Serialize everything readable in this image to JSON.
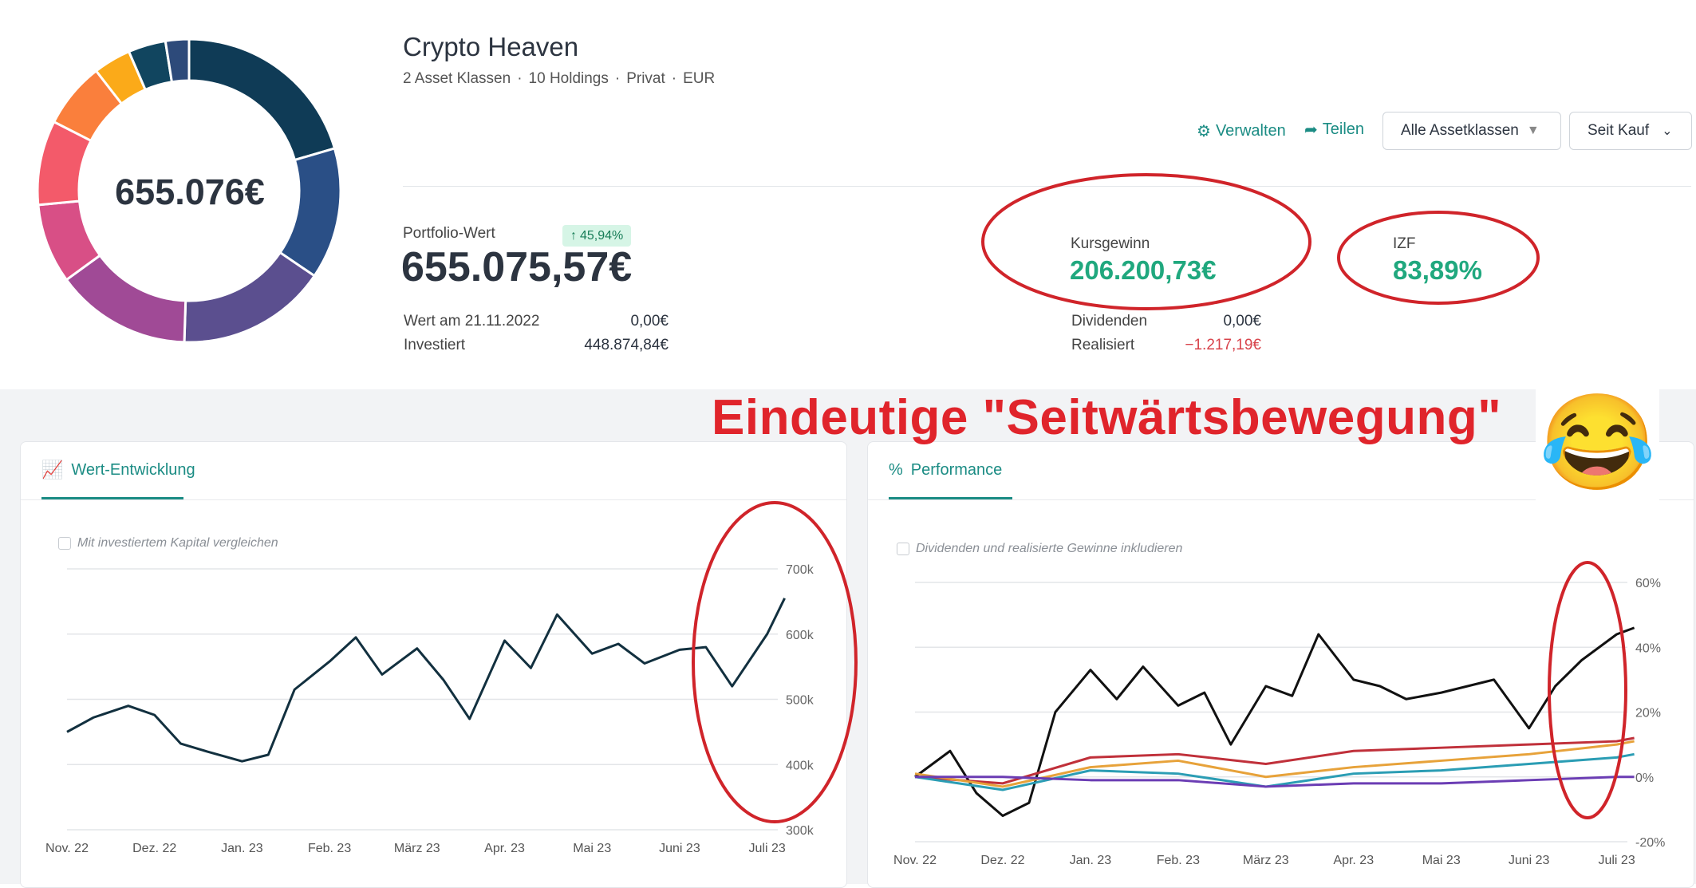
{
  "portfolio": {
    "title": "Crypto Heaven",
    "subtitle": [
      "2 Asset Klassen",
      "10 Holdings",
      "Privat",
      "EUR"
    ],
    "donut_value": "655.076€",
    "donut_segments": [
      {
        "color": "#0f3b56",
        "fraction": 0.205
      },
      {
        "color": "#2a4f86",
        "fraction": 0.14
      },
      {
        "color": "#5b4f8f",
        "fraction": 0.16
      },
      {
        "color": "#a04a96",
        "fraction": 0.145
      },
      {
        "color": "#d84f86",
        "fraction": 0.085
      },
      {
        "color": "#f35a6a",
        "fraction": 0.09
      },
      {
        "color": "#fa7f3c",
        "fraction": 0.07
      },
      {
        "color": "#fbaa19",
        "fraction": 0.04
      },
      {
        "color": "#11455f",
        "fraction": 0.04
      },
      {
        "color": "#2d4a7a",
        "fraction": 0.025
      }
    ]
  },
  "toolbar": {
    "manage": "Verwalten",
    "share": "Teilen",
    "asset_filter": "Alle Assetklassen",
    "period": "Seit Kauf"
  },
  "stats": {
    "portfolio_label": "Portfolio-Wert",
    "portfolio_value": "655.075,57€",
    "badge": "45,94%",
    "start_label": "Wert am 21.11.2022",
    "start_value": "0,00€",
    "invested_label": "Investiert",
    "invested_value": "448.874,84€",
    "gain_label": "Kursgewinn",
    "gain_value": "206.200,73€",
    "irr_label": "IZF",
    "irr_value": "83,89%",
    "dividends_label": "Dividenden",
    "dividends_value": "0,00€",
    "realized_label": "Realisiert",
    "realized_value": "−1.217,19€"
  },
  "annotation": {
    "headline": "Eindeutige \"Seitwärtsbewegung\"",
    "emoji": "😂",
    "circle_color": "#d0242a"
  },
  "cards": {
    "value": {
      "tab": "Wert-Entwicklung",
      "checkbox": "Mit investiertem Kapital vergleichen"
    },
    "performance": {
      "tab": "Performance",
      "checkbox": "Dividenden und realisierte Gewinne inkludieren"
    }
  },
  "colors": {
    "accent": "#1b8c84",
    "positive": "#20a87e",
    "negative": "#d8434b"
  },
  "chart_data": [
    {
      "type": "line",
      "title": "Wert-Entwicklung",
      "x_ticks": [
        "Nov. 22",
        "Dez. 22",
        "Jan. 23",
        "Feb. 23",
        "März 23",
        "Apr. 23",
        "Mai 23",
        "Juni 23",
        "Juli 23"
      ],
      "y_ticks": [
        "300k",
        "400k",
        "500k",
        "600k",
        "700k"
      ],
      "ylim": [
        300000,
        700000
      ],
      "grid": true,
      "series": [
        {
          "color": "#12303f",
          "x": [
            0,
            0.3,
            0.7,
            1,
            1.3,
            1.6,
            2,
            2.3,
            2.6,
            3,
            3.3,
            3.6,
            4,
            4.3,
            4.6,
            5,
            5.3,
            5.6,
            6,
            6.3,
            6.6,
            7,
            7.3,
            7.6,
            8,
            8.2
          ],
          "y": [
            450000,
            472000,
            490000,
            476000,
            432000,
            420000,
            405000,
            415000,
            515000,
            558000,
            595000,
            538000,
            578000,
            530000,
            470000,
            590000,
            548000,
            630000,
            570000,
            585000,
            555000,
            576000,
            580000,
            520000,
            600000,
            655000
          ]
        }
      ]
    },
    {
      "type": "line",
      "title": "Performance",
      "x_ticks": [
        "Nov. 22",
        "Dez. 22",
        "Jan. 23",
        "Feb. 23",
        "März 23",
        "Apr. 23",
        "Mai 23",
        "Juni 23",
        "Juli 23"
      ],
      "y_ticks": [
        "-20%",
        "0%",
        "20%",
        "40%",
        "60%"
      ],
      "ylim": [
        -20,
        60
      ],
      "grid": true,
      "series": [
        {
          "color": "#111111",
          "x": [
            0,
            0.4,
            0.7,
            1,
            1.3,
            1.6,
            2,
            2.3,
            2.6,
            3,
            3.3,
            3.6,
            4,
            4.3,
            4.6,
            5,
            5.3,
            5.6,
            6,
            6.3,
            6.6,
            7,
            7.3,
            7.6,
            8,
            8.2
          ],
          "y": [
            0,
            8,
            -5,
            -12,
            -8,
            20,
            33,
            24,
            34,
            22,
            26,
            10,
            28,
            25,
            44,
            30,
            28,
            24,
            26,
            28,
            30,
            15,
            28,
            36,
            44,
            46
          ]
        },
        {
          "color": "#c0303a",
          "x": [
            0,
            1,
            2,
            3,
            4,
            5,
            6,
            7,
            8,
            8.2
          ],
          "y": [
            0,
            -2,
            6,
            7,
            4,
            8,
            9,
            10,
            11,
            12
          ]
        },
        {
          "color": "#e7a23a",
          "x": [
            0,
            1,
            2,
            3,
            4,
            5,
            6,
            7,
            8,
            8.2
          ],
          "y": [
            1,
            -3,
            3,
            5,
            0,
            3,
            5,
            7,
            10,
            11
          ]
        },
        {
          "color": "#2b9db4",
          "x": [
            0,
            1,
            2,
            3,
            4,
            5,
            6,
            7,
            8,
            8.2
          ],
          "y": [
            0,
            -4,
            2,
            1,
            -3,
            1,
            2,
            4,
            6,
            7
          ]
        },
        {
          "color": "#6b3db4",
          "x": [
            0,
            1,
            2,
            3,
            4,
            5,
            6,
            7,
            8,
            8.2
          ],
          "y": [
            0,
            0,
            -1,
            -1,
            -3,
            -2,
            -2,
            -1,
            0,
            0
          ]
        }
      ]
    }
  ]
}
